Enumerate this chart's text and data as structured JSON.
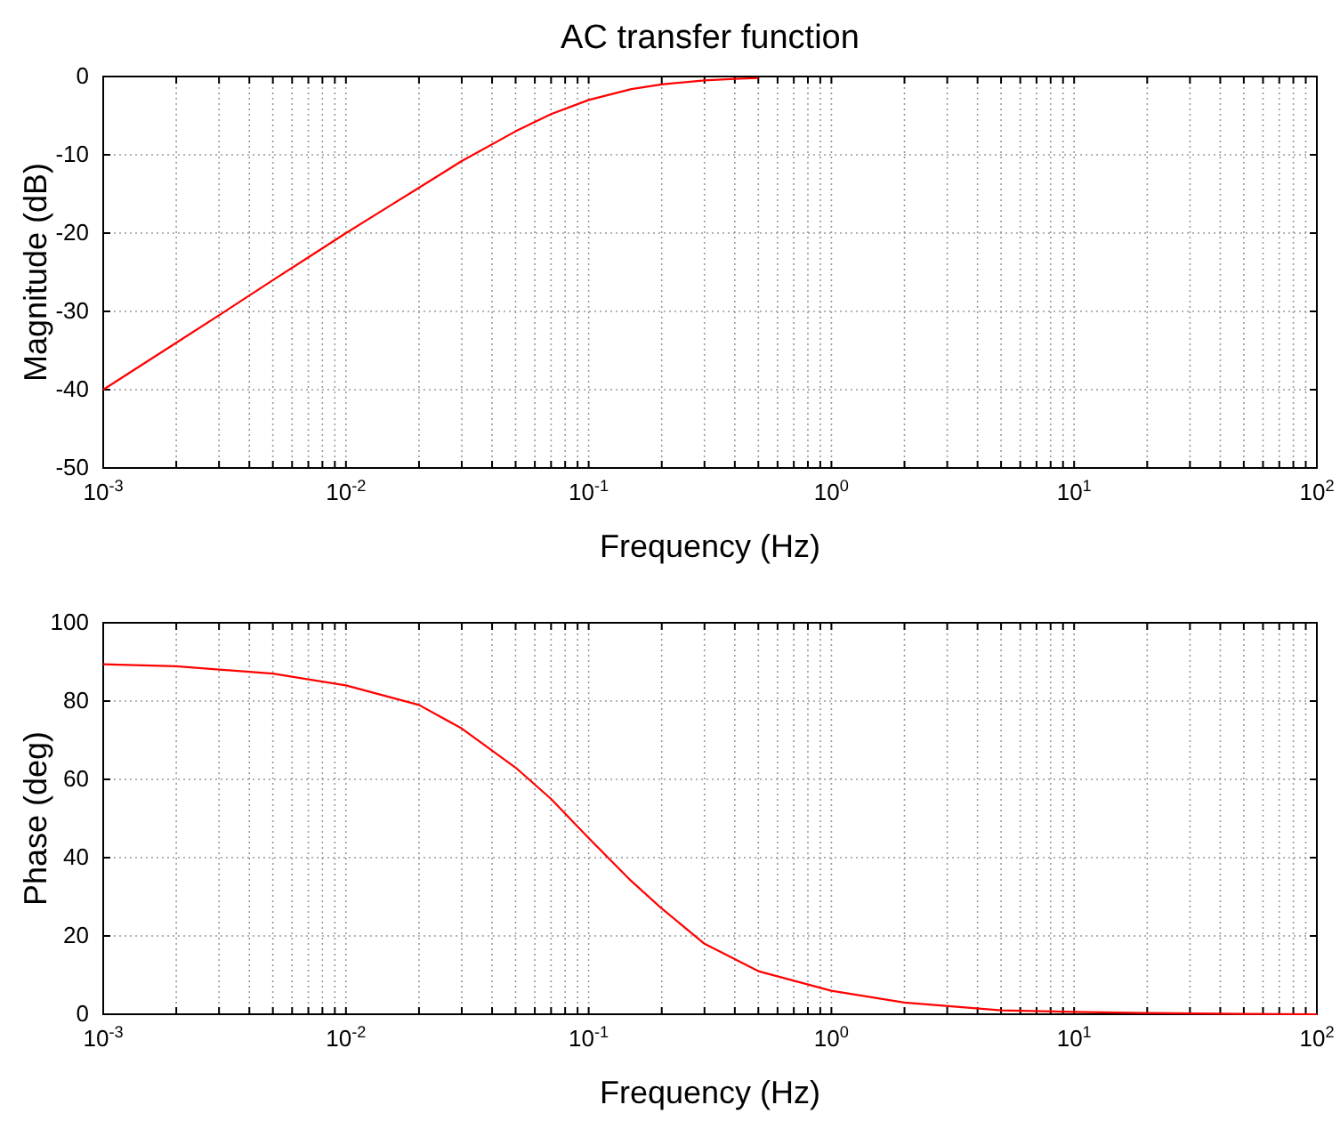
{
  "chart_data": [
    {
      "type": "line",
      "title": "AC transfer function",
      "xlabel": "Frequency (Hz)",
      "ylabel": "Magnitude (dB)",
      "log": "x",
      "grid": true,
      "xlim": [
        0.001,
        100
      ],
      "ylim": [
        -50,
        0
      ],
      "yticks": [
        -50,
        -40,
        -30,
        -20,
        -10,
        0
      ],
      "xticks": [
        {
          "value": 0.001,
          "label": "10$^{-3}$"
        },
        {
          "value": 0.002,
          "label": null
        },
        {
          "value": 0.003,
          "label": null
        },
        {
          "value": 0.004,
          "label": null
        },
        {
          "value": 0.005,
          "label": null
        },
        {
          "value": 0.006,
          "label": null
        },
        {
          "value": 0.007,
          "label": null
        },
        {
          "value": 0.008,
          "label": null
        },
        {
          "value": 0.009,
          "label": null
        },
        {
          "value": 0.01,
          "label": "10$^{-2}$"
        },
        {
          "value": 0.02,
          "label": null
        },
        {
          "value": 0.03,
          "label": null
        },
        {
          "value": 0.04,
          "label": null
        },
        {
          "value": 0.05,
          "label": null
        },
        {
          "value": 0.06,
          "label": null
        },
        {
          "value": 0.07,
          "label": null
        },
        {
          "value": 0.08,
          "label": null
        },
        {
          "value": 0.09,
          "label": null
        },
        {
          "value": 0.1,
          "label": "10$^{-1}$"
        },
        {
          "value": 0.2,
          "label": null
        },
        {
          "value": 0.3,
          "label": null
        },
        {
          "value": 0.4,
          "label": null
        },
        {
          "value": 0.5,
          "label": null
        },
        {
          "value": 0.6,
          "label": null
        },
        {
          "value": 0.7,
          "label": null
        },
        {
          "value": 0.8,
          "label": null
        },
        {
          "value": 0.9,
          "label": null
        },
        {
          "value": 1,
          "label": "10$^{0}$"
        },
        {
          "value": 2,
          "label": null
        },
        {
          "value": 3,
          "label": null
        },
        {
          "value": 4,
          "label": null
        },
        {
          "value": 5,
          "label": null
        },
        {
          "value": 6,
          "label": null
        },
        {
          "value": 7,
          "label": null
        },
        {
          "value": 8,
          "label": null
        },
        {
          "value": 9,
          "label": null
        },
        {
          "value": 10,
          "label": "10$^{1}$"
        },
        {
          "value": 20,
          "label": null
        },
        {
          "value": 30,
          "label": null
        },
        {
          "value": 40,
          "label": null
        },
        {
          "value": 50,
          "label": null
        },
        {
          "value": 60,
          "label": null
        },
        {
          "value": 70,
          "label": null
        },
        {
          "value": 80,
          "label": null
        },
        {
          "value": 90,
          "label": null
        },
        {
          "value": 100,
          "label": "10$^{2}$"
        }
      ],
      "series": [
        {
          "color": "#ff0000",
          "x": [
            0.001,
            0.002,
            0.003,
            0.005,
            0.007,
            0.01,
            0.015,
            0.02,
            0.03,
            0.05,
            0.07,
            0.1,
            0.15,
            0.2,
            0.3,
            0.4,
            0.5
          ],
          "values": [
            -40,
            -34,
            -30.5,
            -26,
            -23.1,
            -20,
            -16.6,
            -14.2,
            -10.8,
            -7,
            -4.8,
            -3,
            -1.6,
            -1,
            -0.5,
            -0.3,
            -0.2
          ]
        }
      ]
    },
    {
      "type": "line",
      "xlabel": "Frequency (Hz)",
      "ylabel": "Phase (deg)",
      "log": "x",
      "grid": true,
      "xlim": [
        0.001,
        100
      ],
      "ylim": [
        0,
        100
      ],
      "yticks": [
        0,
        20,
        40,
        60,
        80,
        100
      ],
      "xticks": [
        {
          "value": 0.001,
          "label": "10$^{-3}$"
        },
        {
          "value": 0.002,
          "label": null
        },
        {
          "value": 0.003,
          "label": null
        },
        {
          "value": 0.004,
          "label": null
        },
        {
          "value": 0.005,
          "label": null
        },
        {
          "value": 0.006,
          "label": null
        },
        {
          "value": 0.007,
          "label": null
        },
        {
          "value": 0.008,
          "label": null
        },
        {
          "value": 0.009,
          "label": null
        },
        {
          "value": 0.01,
          "label": "10$^{-2}$"
        },
        {
          "value": 0.02,
          "label": null
        },
        {
          "value": 0.03,
          "label": null
        },
        {
          "value": 0.04,
          "label": null
        },
        {
          "value": 0.05,
          "label": null
        },
        {
          "value": 0.06,
          "label": null
        },
        {
          "value": 0.07,
          "label": null
        },
        {
          "value": 0.08,
          "label": null
        },
        {
          "value": 0.09,
          "label": null
        },
        {
          "value": 0.1,
          "label": "10$^{-1}$"
        },
        {
          "value": 0.2,
          "label": null
        },
        {
          "value": 0.3,
          "label": null
        },
        {
          "value": 0.4,
          "label": null
        },
        {
          "value": 0.5,
          "label": null
        },
        {
          "value": 0.6,
          "label": null
        },
        {
          "value": 0.7,
          "label": null
        },
        {
          "value": 0.8,
          "label": null
        },
        {
          "value": 0.9,
          "label": null
        },
        {
          "value": 1,
          "label": "10$^{0}$"
        },
        {
          "value": 2,
          "label": null
        },
        {
          "value": 3,
          "label": null
        },
        {
          "value": 4,
          "label": null
        },
        {
          "value": 5,
          "label": null
        },
        {
          "value": 6,
          "label": null
        },
        {
          "value": 7,
          "label": null
        },
        {
          "value": 8,
          "label": null
        },
        {
          "value": 9,
          "label": null
        },
        {
          "value": 10,
          "label": "10$^{1}$"
        },
        {
          "value": 20,
          "label": null
        },
        {
          "value": 30,
          "label": null
        },
        {
          "value": 40,
          "label": null
        },
        {
          "value": 50,
          "label": null
        },
        {
          "value": 60,
          "label": null
        },
        {
          "value": 70,
          "label": null
        },
        {
          "value": 80,
          "label": null
        },
        {
          "value": 90,
          "label": null
        },
        {
          "value": 100,
          "label": "10$^{2}$"
        }
      ],
      "series": [
        {
          "color": "#ff0000",
          "x": [
            0.001,
            0.002,
            0.005,
            0.01,
            0.02,
            0.03,
            0.05,
            0.07,
            0.1,
            0.15,
            0.2,
            0.3,
            0.5,
            1,
            2,
            5,
            10,
            20,
            50,
            100
          ],
          "values": [
            89.4,
            88.9,
            87,
            84,
            79,
            73,
            63,
            55,
            45,
            34,
            27,
            18,
            11,
            6,
            3,
            1,
            0.6,
            0.3,
            0.1,
            0
          ]
        }
      ]
    }
  ]
}
